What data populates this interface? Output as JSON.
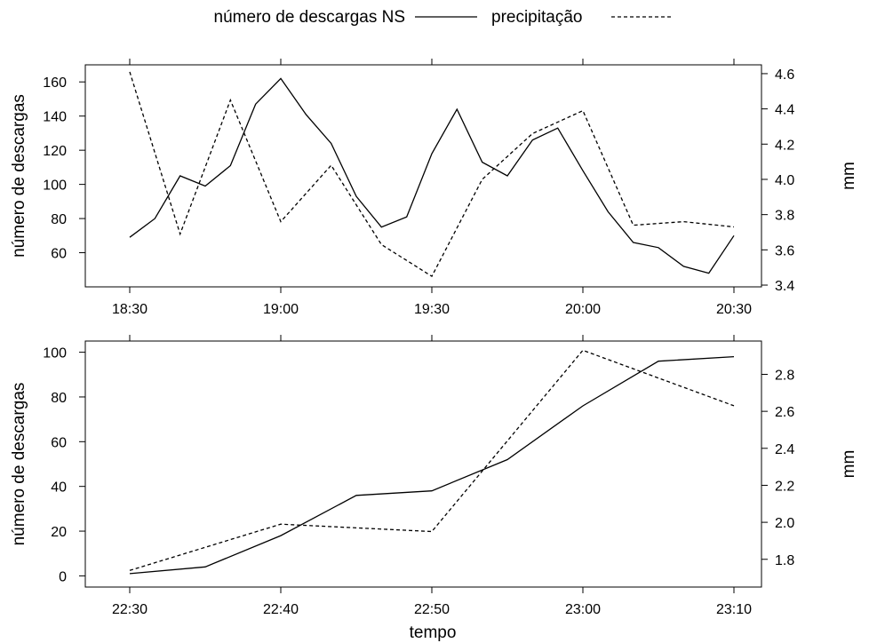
{
  "legend": {
    "solid_label": "número de descargas NS",
    "dashed_label": "precipitação"
  },
  "xlabel": "tempo",
  "chart_data": [
    {
      "type": "line",
      "ylabel_left": "número de descargas",
      "ylabel_right": "mm",
      "x_ticks": [
        "18:30",
        "19:00",
        "19:30",
        "20:00",
        "20:30"
      ],
      "x_range": [
        "18:30",
        "20:30"
      ],
      "y_left_ticks": [
        60,
        80,
        100,
        120,
        140,
        160
      ],
      "y_left_range": [
        40,
        170
      ],
      "y_right_ticks": [
        3.4,
        3.6,
        3.8,
        4.0,
        4.2,
        4.4,
        4.6
      ],
      "y_right_range": [
        3.39,
        4.65
      ],
      "series": [
        {
          "name": "número de descargas NS",
          "axis": "left",
          "x": [
            "18:30",
            "18:35",
            "18:40",
            "18:45",
            "18:50",
            "18:55",
            "19:00",
            "19:05",
            "19:10",
            "19:15",
            "19:20",
            "19:25",
            "19:30",
            "19:35",
            "19:40",
            "19:45",
            "19:50",
            "19:55",
            "20:00",
            "20:05",
            "20:10",
            "20:15",
            "20:20",
            "20:25",
            "20:30"
          ],
          "values": [
            69,
            80,
            105,
            99,
            111,
            147,
            162,
            141,
            124,
            93,
            75,
            81,
            118,
            144,
            113,
            105,
            126,
            133,
            108,
            84,
            66,
            63,
            52,
            48,
            70
          ]
        },
        {
          "name": "precipitação",
          "axis": "right",
          "x": [
            "18:30",
            "18:40",
            "18:50",
            "19:00",
            "19:10",
            "19:20",
            "19:30",
            "19:40",
            "19:50",
            "20:00",
            "20:10",
            "20:20",
            "20:30"
          ],
          "values": [
            4.61,
            3.69,
            4.45,
            3.76,
            4.08,
            3.63,
            3.45,
            4.0,
            4.26,
            4.39,
            3.74,
            3.76,
            3.73
          ]
        }
      ]
    },
    {
      "type": "line",
      "ylabel_left": "número de descargas",
      "ylabel_right": "mm",
      "x_ticks": [
        "22:30",
        "22:40",
        "22:50",
        "23:00",
        "23:10"
      ],
      "x_range": [
        "22:30",
        "23:10"
      ],
      "y_left_ticks": [
        0,
        20,
        40,
        60,
        80,
        100
      ],
      "y_left_range": [
        -5,
        105
      ],
      "y_right_ticks": [
        1.8,
        2.0,
        2.2,
        2.4,
        2.6,
        2.8
      ],
      "y_right_range": [
        1.65,
        2.98
      ],
      "series": [
        {
          "name": "número de descargas NS",
          "axis": "left",
          "x": [
            "22:30",
            "22:35",
            "22:40",
            "22:45",
            "22:50",
            "22:55",
            "23:00",
            "23:05",
            "23:10"
          ],
          "values": [
            1,
            4,
            18,
            36,
            38,
            52,
            76,
            96,
            98
          ]
        },
        {
          "name": "precipitação",
          "axis": "right",
          "x": [
            "22:30",
            "22:40",
            "22:50",
            "23:00",
            "23:10"
          ],
          "values": [
            1.74,
            1.99,
            1.95,
            2.93,
            2.63
          ]
        }
      ]
    }
  ]
}
